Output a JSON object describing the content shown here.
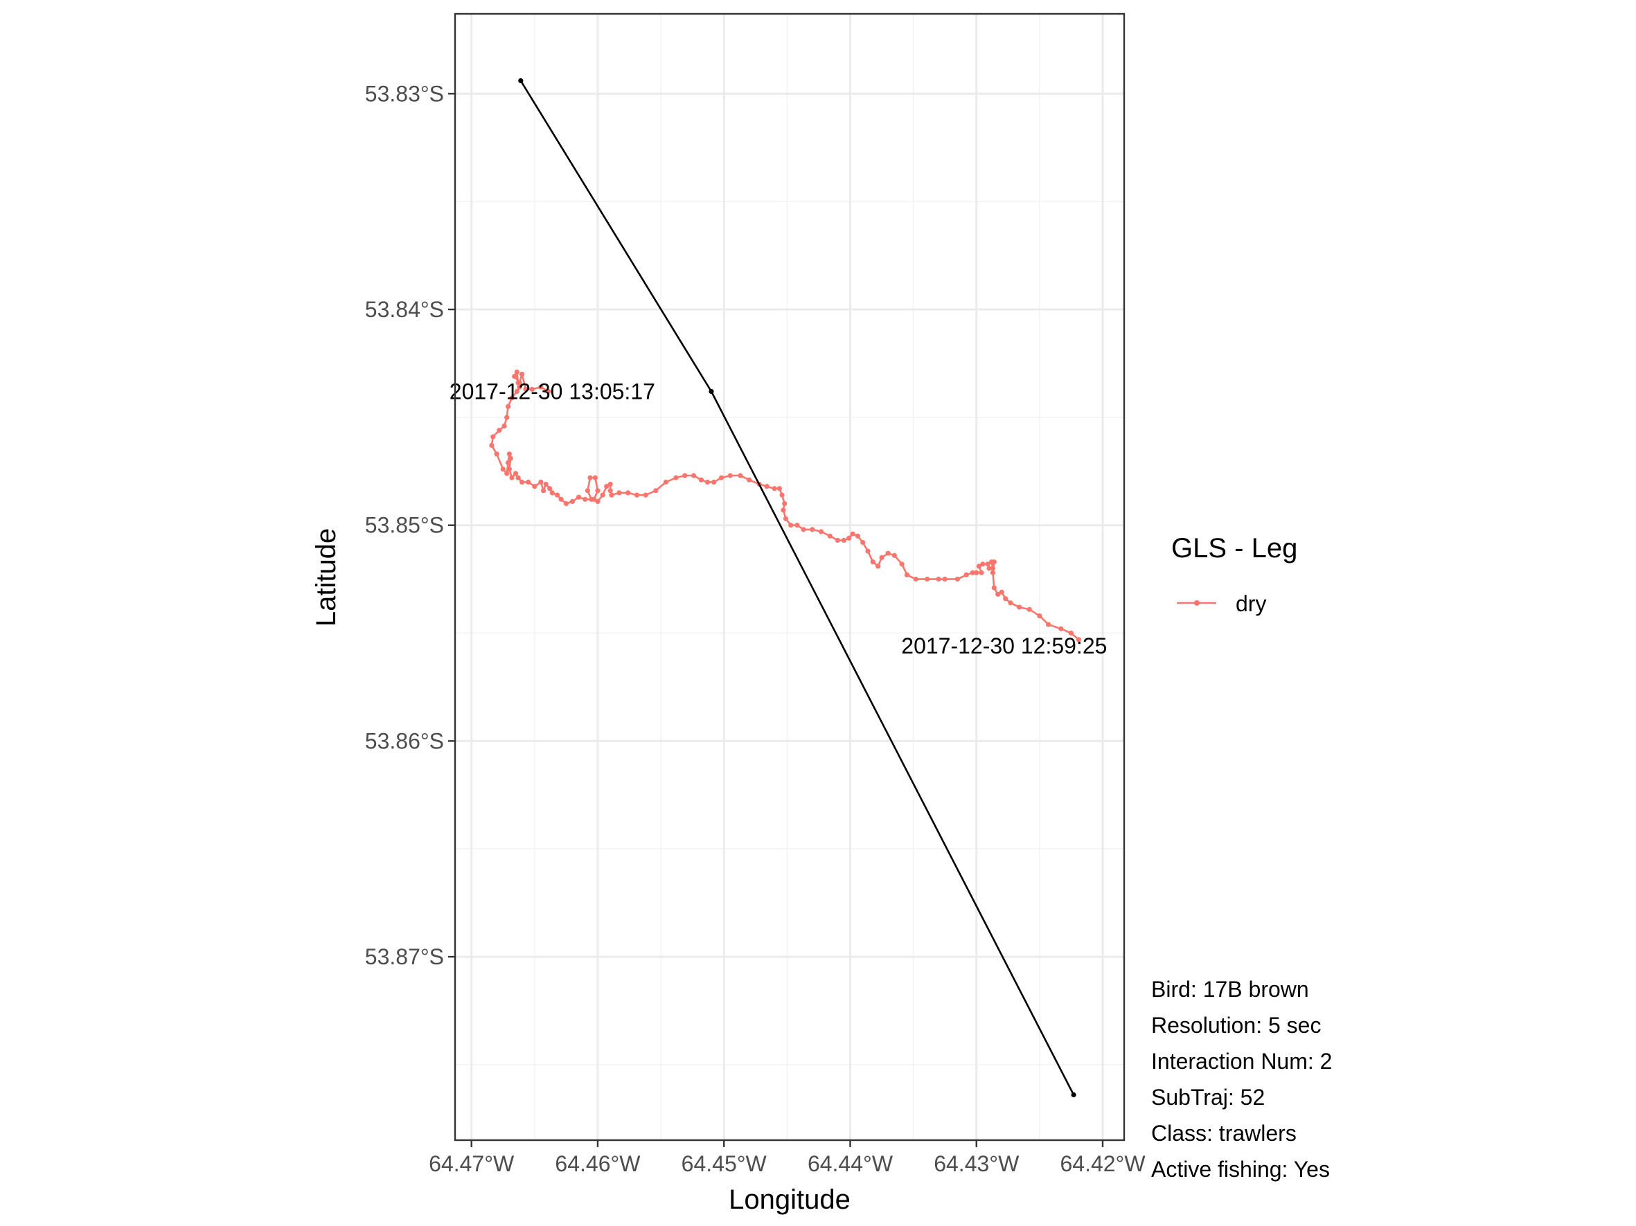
{
  "chart_data": {
    "type": "line",
    "xlabel": "Longitude",
    "ylabel": "Latitude",
    "xlim": [
      -64.4713,
      -64.4183
    ],
    "ylim": [
      -53.8785,
      -53.8263
    ],
    "x_ticks": [
      {
        "value": -64.47,
        "label": "64.47°W"
      },
      {
        "value": -64.46,
        "label": "64.46°W"
      },
      {
        "value": -64.45,
        "label": "64.45°W"
      },
      {
        "value": -64.44,
        "label": "64.44°W"
      },
      {
        "value": -64.43,
        "label": "64.43°W"
      },
      {
        "value": -64.42,
        "label": "64.42°W"
      }
    ],
    "y_ticks": [
      {
        "value": -53.83,
        "label": "53.83°S"
      },
      {
        "value": -53.84,
        "label": "53.84°S"
      },
      {
        "value": -53.85,
        "label": "53.85°S"
      },
      {
        "value": -53.86,
        "label": "53.86°S"
      },
      {
        "value": -53.87,
        "label": "53.87°S"
      }
    ],
    "grid": true,
    "legend": {
      "title": "GLS - Leg",
      "position": "right",
      "entries": [
        {
          "label": "dry",
          "color": "#F8766D"
        }
      ]
    },
    "series": [
      {
        "name": "dry",
        "color": "#F8766D",
        "points": [
          [
            -64.4219,
            -53.8553
          ],
          [
            -64.4225,
            -53.855
          ],
          [
            -64.4233,
            -53.8548
          ],
          [
            -64.4243,
            -53.8546
          ],
          [
            -64.425,
            -53.8542
          ],
          [
            -64.4258,
            -53.8539
          ],
          [
            -64.4266,
            -53.8538
          ],
          [
            -64.4273,
            -53.8536
          ],
          [
            -64.4277,
            -53.8534
          ],
          [
            -64.428,
            -53.8531
          ],
          [
            -64.4283,
            -53.8532
          ],
          [
            -64.4286,
            -53.8529
          ],
          [
            -64.4287,
            -53.8522
          ],
          [
            -64.4286,
            -53.8517
          ],
          [
            -64.4288,
            -53.8517
          ],
          [
            -64.4287,
            -53.852
          ],
          [
            -64.429,
            -53.852
          ],
          [
            -64.4291,
            -53.8518
          ],
          [
            -64.4295,
            -53.8518
          ],
          [
            -64.4298,
            -53.8519
          ],
          [
            -64.4296,
            -53.8522
          ],
          [
            -64.43,
            -53.8522
          ],
          [
            -64.4303,
            -53.8522
          ],
          [
            -64.4308,
            -53.8523
          ],
          [
            -64.4315,
            -53.8525
          ],
          [
            -64.4325,
            -53.8525
          ],
          [
            -64.433,
            -53.8525
          ],
          [
            -64.4339,
            -53.8525
          ],
          [
            -64.4348,
            -53.8525
          ],
          [
            -64.4355,
            -53.8523
          ],
          [
            -64.4359,
            -53.8518
          ],
          [
            -64.4365,
            -53.8514
          ],
          [
            -64.437,
            -53.8513
          ],
          [
            -64.4375,
            -53.8515
          ],
          [
            -64.4378,
            -53.8519
          ],
          [
            -64.4382,
            -53.8517
          ],
          [
            -64.4386,
            -53.8512
          ],
          [
            -64.439,
            -53.8508
          ],
          [
            -64.4394,
            -53.8505
          ],
          [
            -64.4398,
            -53.8504
          ],
          [
            -64.4401,
            -53.8506
          ],
          [
            -64.4405,
            -53.8507
          ],
          [
            -64.441,
            -53.8507
          ],
          [
            -64.4416,
            -53.8505
          ],
          [
            -64.4423,
            -53.8503
          ],
          [
            -64.443,
            -53.8502
          ],
          [
            -64.4437,
            -53.8502
          ],
          [
            -64.4442,
            -53.85
          ],
          [
            -64.4447,
            -53.85
          ],
          [
            -64.4451,
            -53.8497
          ],
          [
            -64.4453,
            -53.8493
          ],
          [
            -64.4452,
            -53.849
          ],
          [
            -64.4454,
            -53.8486
          ],
          [
            -64.4456,
            -53.8483
          ],
          [
            -64.446,
            -53.8483
          ],
          [
            -64.4466,
            -53.8482
          ],
          [
            -64.4472,
            -53.8481
          ],
          [
            -64.448,
            -53.8479
          ],
          [
            -64.4487,
            -53.8477
          ],
          [
            -64.4495,
            -53.8477
          ],
          [
            -64.4502,
            -53.8478
          ],
          [
            -64.4508,
            -53.848
          ],
          [
            -64.4513,
            -53.848
          ],
          [
            -64.4518,
            -53.8479
          ],
          [
            -64.4524,
            -53.8477
          ],
          [
            -64.4531,
            -53.8477
          ],
          [
            -64.4538,
            -53.8478
          ],
          [
            -64.4546,
            -53.848
          ],
          [
            -64.4554,
            -53.8484
          ],
          [
            -64.4562,
            -53.8486
          ],
          [
            -64.4569,
            -53.8486
          ],
          [
            -64.4576,
            -53.8485
          ],
          [
            -64.4583,
            -53.8485
          ],
          [
            -64.4589,
            -53.8486
          ],
          [
            -64.459,
            -53.8484
          ],
          [
            -64.459,
            -53.8481
          ],
          [
            -64.4593,
            -53.8482
          ],
          [
            -64.4596,
            -53.8486
          ],
          [
            -64.46,
            -53.8489
          ],
          [
            -64.4603,
            -53.8488
          ],
          [
            -64.46,
            -53.8484
          ],
          [
            -64.4602,
            -53.8478
          ],
          [
            -64.4606,
            -53.8478
          ],
          [
            -64.4608,
            -53.8484
          ],
          [
            -64.4605,
            -53.8488
          ],
          [
            -64.461,
            -53.8488
          ],
          [
            -64.4615,
            -53.8487
          ],
          [
            -64.462,
            -53.8489
          ],
          [
            -64.4625,
            -53.849
          ],
          [
            -64.4629,
            -53.8488
          ],
          [
            -64.4632,
            -53.8486
          ],
          [
            -64.4636,
            -53.8485
          ],
          [
            -64.4638,
            -53.8483
          ],
          [
            -64.4641,
            -53.8481
          ],
          [
            -64.4643,
            -53.8484
          ],
          [
            -64.4645,
            -53.848
          ],
          [
            -64.465,
            -53.8482
          ],
          [
            -64.4655,
            -53.848
          ],
          [
            -64.466,
            -53.848
          ],
          [
            -64.4663,
            -53.8478
          ],
          [
            -64.4665,
            -53.8476
          ],
          [
            -64.4668,
            -53.8478
          ],
          [
            -64.467,
            -53.8474
          ],
          [
            -64.4669,
            -53.8469
          ],
          [
            -64.467,
            -53.8467
          ],
          [
            -64.4671,
            -53.8471
          ],
          [
            -64.4672,
            -53.8476
          ],
          [
            -64.4675,
            -53.8474
          ],
          [
            -64.468,
            -53.8467
          ],
          [
            -64.4684,
            -53.8463
          ],
          [
            -64.4683,
            -53.8459
          ],
          [
            -64.4678,
            -53.8456
          ],
          [
            -64.4674,
            -53.8454
          ],
          [
            -64.4672,
            -53.845
          ],
          [
            -64.4671,
            -53.8445
          ],
          [
            -64.4668,
            -53.8441
          ],
          [
            -64.4664,
            -53.8438
          ],
          [
            -64.4662,
            -53.8436
          ],
          [
            -64.4663,
            -53.8434
          ],
          [
            -64.4664,
            -53.8429
          ],
          [
            -64.4666,
            -53.8431
          ],
          [
            -64.4662,
            -53.8434
          ],
          [
            -64.466,
            -53.843
          ],
          [
            -64.4657,
            -53.8437
          ],
          [
            -64.4652,
            -53.8437
          ],
          [
            -64.4645,
            -53.8436
          ],
          [
            -64.4639,
            -53.8438
          ]
        ]
      },
      {
        "name": "",
        "color": "#000000",
        "points": [
          [
            -64.4661,
            -53.8294
          ],
          [
            -64.451,
            -53.8438
          ],
          [
            -64.4223,
            -53.8764
          ]
        ]
      }
    ],
    "annotations": [
      {
        "text": "2017-12-30 13:05:17",
        "x": -64.4636,
        "y": -53.8438
      },
      {
        "text": "2017-12-30 12:59:25",
        "x": -64.4278,
        "y": -53.8556
      }
    ]
  },
  "info_panel": {
    "lines": [
      "Bird: 17B brown",
      "Resolution: 5 sec",
      "Interaction Num: 2",
      "SubTraj: 52",
      "Class: trawlers",
      "Active fishing: Yes"
    ]
  }
}
